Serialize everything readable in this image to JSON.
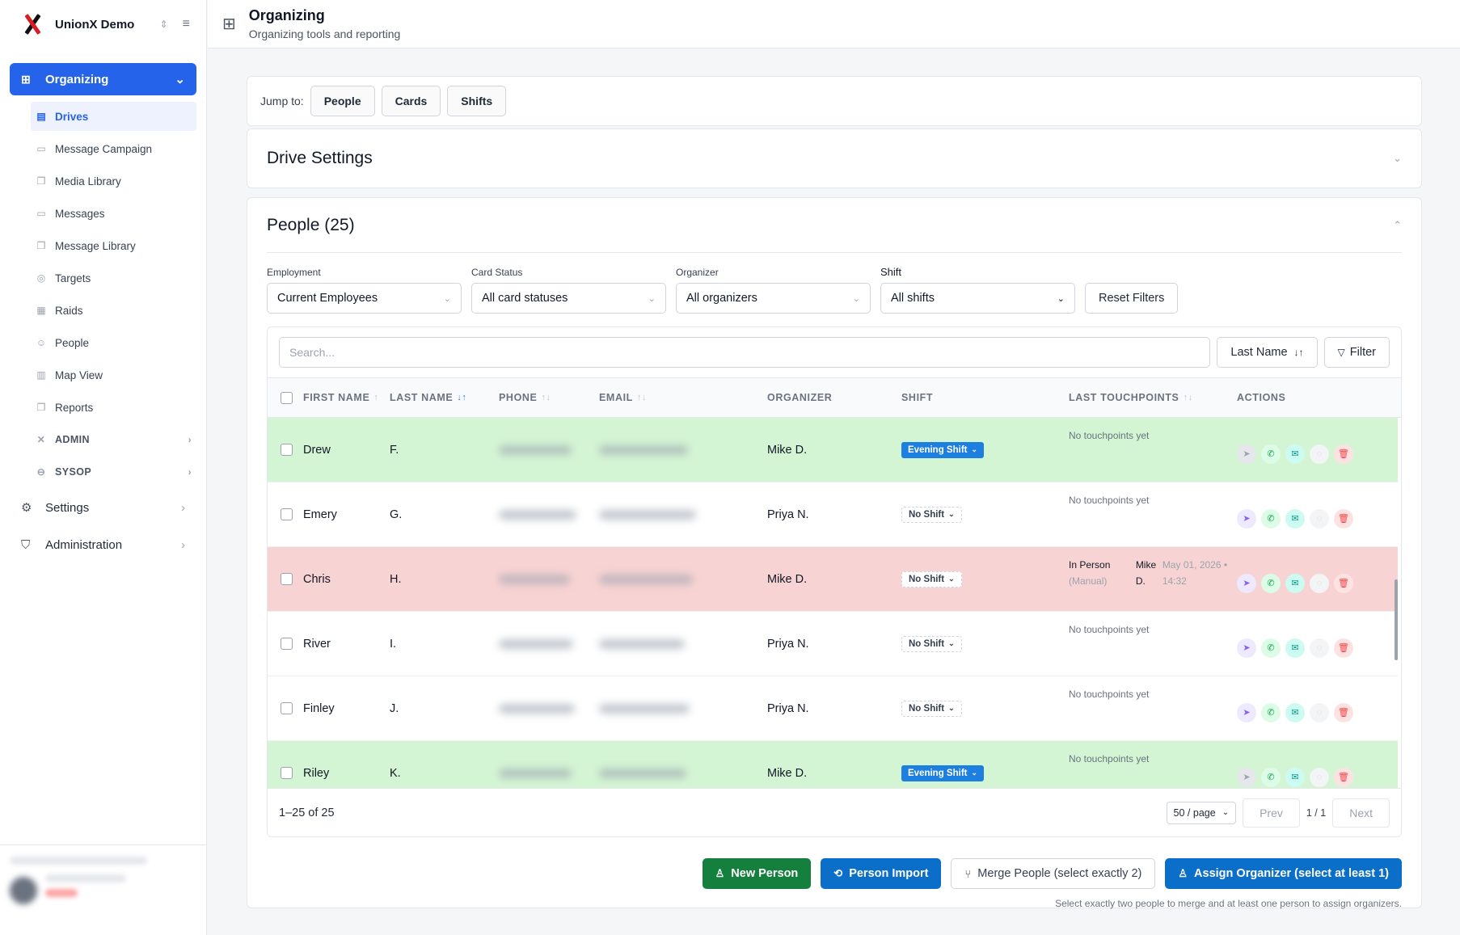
{
  "workspace": {
    "name": "UnionX Demo"
  },
  "sidebar": {
    "primary": {
      "label": "Organizing"
    },
    "items": [
      {
        "label": "Drives",
        "icon": "document-icon",
        "active": true
      },
      {
        "label": "Message Campaign",
        "icon": "chat-icon"
      },
      {
        "label": "Media Library",
        "icon": "copy-icon"
      },
      {
        "label": "Messages",
        "icon": "chat-icon"
      },
      {
        "label": "Message Library",
        "icon": "copy-icon"
      },
      {
        "label": "Targets",
        "icon": "target-icon"
      },
      {
        "label": "Raids",
        "icon": "building-icon"
      },
      {
        "label": "People",
        "icon": "users-icon"
      },
      {
        "label": "Map View",
        "icon": "map-icon"
      },
      {
        "label": "Reports",
        "icon": "copy-icon"
      }
    ],
    "groups": [
      {
        "label": "ADMIN"
      },
      {
        "label": "SYSOP"
      }
    ],
    "bottom": [
      {
        "label": "Settings"
      },
      {
        "label": "Administration"
      }
    ]
  },
  "header": {
    "title": "Organizing",
    "subtitle": "Organizing tools and reporting"
  },
  "jump": {
    "label": "Jump to:",
    "links": [
      "People",
      "Cards",
      "Shifts"
    ]
  },
  "drive_settings": {
    "title": "Drive Settings"
  },
  "people": {
    "title": "People (25)",
    "filters": [
      {
        "label": "Employment",
        "value": "Current Employees"
      },
      {
        "label": "Card Status",
        "value": "All card statuses"
      },
      {
        "label": "Organizer",
        "value": "All organizers"
      },
      {
        "label": "Shift",
        "value": "All shifts"
      }
    ],
    "reset_label": "Reset Filters",
    "search_placeholder": "Search...",
    "sort_label": "Last Name",
    "filter_label": "Filter",
    "columns": {
      "first_name": "FIRST NAME",
      "last_name": "LAST NAME",
      "phone": "PHONE",
      "email": "EMAIL",
      "organizer": "ORGANIZER",
      "shift": "SHIFT",
      "touchpoints": "LAST TOUCHPOINTS",
      "actions": "ACTIONS"
    },
    "rows": [
      {
        "first": "Drew",
        "last": "F.",
        "organizer": "Mike D.",
        "shift": "Evening Shift",
        "shift_set": true,
        "touch": "No touchpoints yet",
        "tone": "green"
      },
      {
        "first": "Emery",
        "last": "G.",
        "organizer": "Priya N.",
        "shift": "No Shift",
        "shift_set": false,
        "touch": "No touchpoints yet",
        "tone": "white"
      },
      {
        "first": "Chris",
        "last": "H.",
        "organizer": "Mike D.",
        "shift": "No Shift",
        "shift_set": false,
        "touch_type": "In Person",
        "touch_mode": "(Manual)",
        "touch_by": "Mike D.",
        "touch_time": "May 01, 2026 • 14:32",
        "tone": "red"
      },
      {
        "first": "River",
        "last": "I.",
        "organizer": "Priya N.",
        "shift": "No Shift",
        "shift_set": false,
        "touch": "No touchpoints yet",
        "tone": "white"
      },
      {
        "first": "Finley",
        "last": "J.",
        "organizer": "Priya N.",
        "shift": "No Shift",
        "shift_set": false,
        "touch": "No touchpoints yet",
        "tone": "white"
      },
      {
        "first": "Riley",
        "last": "K.",
        "organizer": "Mike D.",
        "shift": "Evening Shift",
        "shift_set": true,
        "touch": "No touchpoints yet",
        "tone": "green"
      }
    ],
    "range": "1–25 of 25",
    "page_size": "50 / page",
    "prev": "Prev",
    "page_info": "1 / 1",
    "next": "Next"
  },
  "actions": {
    "new_person": "New Person",
    "person_import": "Person Import",
    "merge": "Merge People (select exactly 2)",
    "assign": "Assign Organizer (select at least 1)",
    "hint": "Select exactly two people to merge and at least one person to assign organizers."
  },
  "colors": {
    "accent": "#2563eb",
    "row_green": "#d4f5d4",
    "row_red": "#f8d3d3",
    "shift_badge": "#1d7fe0"
  }
}
